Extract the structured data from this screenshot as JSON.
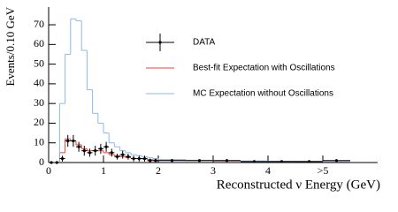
{
  "chart_data": {
    "type": "histogram",
    "xlabel": "Reconstructed ν Energy (GeV)",
    "ylabel": "Events/0.10 GeV",
    "bins": [
      0,
      0.1,
      0.2,
      0.3,
      0.4,
      0.5,
      0.6,
      0.7,
      0.8,
      0.9,
      1.0,
      1.1,
      1.2,
      1.3,
      1.4,
      1.5,
      1.6,
      1.7,
      1.8,
      1.9,
      2.0,
      2.5,
      3.0,
      3.5,
      4.0,
      4.5,
      5.0,
      5.5
    ],
    "series": [
      {
        "name": "DATA",
        "color": "#000000",
        "style": "points",
        "values": [
          0,
          0,
          2,
          11,
          11,
          8,
          6,
          5,
          6,
          7,
          8,
          5,
          3,
          4,
          3,
          2,
          2,
          2,
          1,
          1,
          1,
          1,
          1,
          0.5,
          0.5,
          0.5,
          1
        ],
        "errors": [
          0,
          0,
          1.5,
          3,
          3,
          2.5,
          2.5,
          2,
          2.5,
          2.5,
          2.5,
          2,
          1.5,
          2,
          1.5,
          1.5,
          1.5,
          1.5,
          1,
          1,
          0.5,
          0.5,
          0.5,
          0.3,
          0.3,
          0.3,
          0.5
        ]
      },
      {
        "name": "Best-fit Expectation with Oscillations",
        "color": "#e8403a",
        "style": "step",
        "values": [
          0,
          0,
          5,
          12,
          11,
          9,
          7,
          6,
          6,
          6,
          5,
          4,
          3.5,
          3,
          2.5,
          2,
          2,
          1.8,
          1.5,
          1.3,
          1.1,
          1,
          0.8,
          0.7,
          0.6,
          0.5,
          0.4
        ]
      },
      {
        "name": "MC Expectation without Oscillations",
        "color": "#8db9ea",
        "style": "step",
        "values": [
          0,
          0,
          30,
          55,
          73,
          72,
          57,
          37,
          25,
          20,
          15,
          10,
          8,
          6,
          5,
          4,
          3.5,
          3,
          2.5,
          2,
          1.5,
          1.2,
          1,
          0.8,
          0.7,
          0.6,
          0.5
        ]
      }
    ],
    "xlim": [
      0,
      6
    ],
    "ylim": [
      0,
      79
    ],
    "xticks": [
      0,
      1,
      2,
      3,
      4,
      {
        "value": 5,
        "label": ">5"
      }
    ],
    "yticks": [
      0,
      10,
      20,
      30,
      40,
      50,
      60,
      70
    ],
    "legend": "upper center"
  }
}
